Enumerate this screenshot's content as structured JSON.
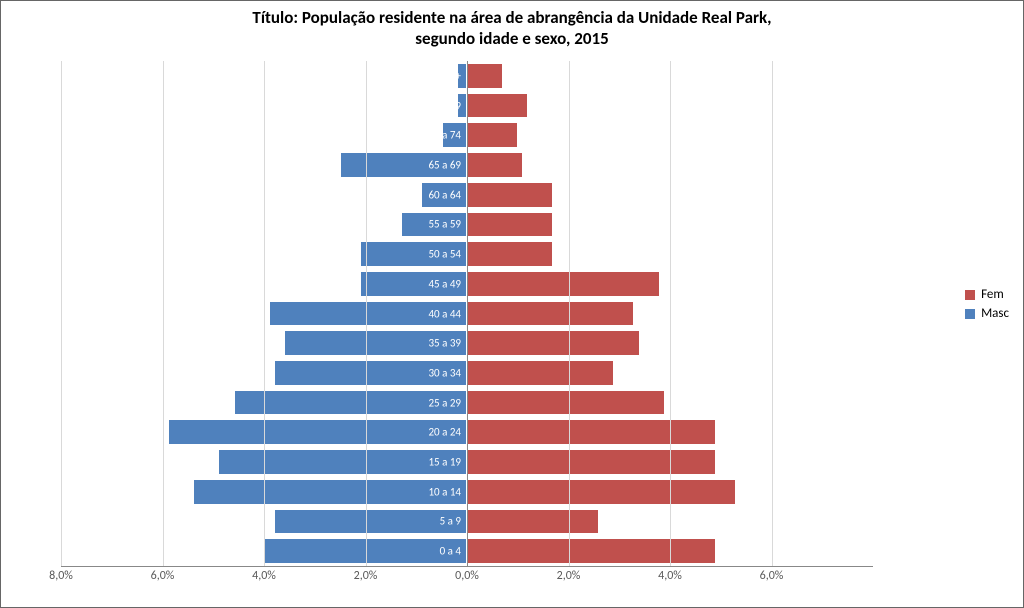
{
  "chart": {
    "type": "population-pyramid",
    "title_line1": "Título: População residente na área de abrangência da Unidade Real Park,",
    "title_line2": "segundo idade e sexo, 2015",
    "title_fontsize": 17,
    "background_color": "#ffffff",
    "grid_color": "#d9d9d9",
    "axis_color": "#888888",
    "tick_label_color": "#595959",
    "cat_label_color": "#ffffff",
    "cat_label_fontsize": 11,
    "colors": {
      "masc": "#4f81bd",
      "fem": "#c0504d"
    },
    "xlim_pct": 8.0,
    "x_ticks": [
      {
        "pos": -8.0,
        "label": "8,0%"
      },
      {
        "pos": -6.0,
        "label": "6,0%"
      },
      {
        "pos": -4.0,
        "label": "4,0%"
      },
      {
        "pos": -2.0,
        "label": "2,0%"
      },
      {
        "pos": 0.0,
        "label": "0,0%"
      },
      {
        "pos": 2.0,
        "label": "2,0%"
      },
      {
        "pos": 4.0,
        "label": "4,0%"
      },
      {
        "pos": 6.0,
        "label": "6,0%"
      }
    ],
    "categories": [
      {
        "label": "0 a 4",
        "masc": 4.0,
        "fem": 4.9
      },
      {
        "label": "5 a 9",
        "masc": 3.8,
        "fem": 2.6
      },
      {
        "label": "10 a 14",
        "masc": 5.4,
        "fem": 5.3
      },
      {
        "label": "15 a 19",
        "masc": 4.9,
        "fem": 4.9
      },
      {
        "label": "20 a 24",
        "masc": 5.9,
        "fem": 4.9
      },
      {
        "label": "25 a 29",
        "masc": 4.6,
        "fem": 3.9
      },
      {
        "label": "30 a 34",
        "masc": 3.8,
        "fem": 2.9
      },
      {
        "label": "35 a 39",
        "masc": 3.6,
        "fem": 3.4
      },
      {
        "label": "40 a 44",
        "masc": 3.9,
        "fem": 3.3
      },
      {
        "label": "45 a 49",
        "masc": 2.1,
        "fem": 3.8
      },
      {
        "label": "50 a 54",
        "masc": 2.1,
        "fem": 1.7
      },
      {
        "label": "55 a 59",
        "masc": 1.3,
        "fem": 1.7
      },
      {
        "label": "60 a 64",
        "masc": 0.9,
        "fem": 1.7
      },
      {
        "label": "65 a 69",
        "masc": 2.5,
        "fem": 1.1
      },
      {
        "label": "70 a 74",
        "masc": 0.5,
        "fem": 1.0
      },
      {
        "label": "75 a 79",
        "masc": 0.2,
        "fem": 1.2
      },
      {
        "label": "80 e +",
        "masc": 0.2,
        "fem": 0.7
      }
    ],
    "legend": {
      "items": [
        {
          "key": "fem",
          "label": "Fem"
        },
        {
          "key": "masc",
          "label": "Masc"
        }
      ],
      "fontsize": 13
    }
  }
}
